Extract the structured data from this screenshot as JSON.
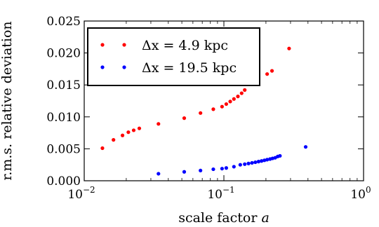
{
  "chart_data": {
    "type": "scatter",
    "xscale": "log",
    "xlim": [
      0.01,
      1
    ],
    "ylim": [
      0,
      0.025
    ],
    "xlabel": "scale factor a",
    "ylabel": "r.m.s. relative deviation",
    "xticks": [
      {
        "value": 0.01,
        "base": "10",
        "exp": "−2"
      },
      {
        "value": 0.1,
        "base": "10",
        "exp": "−1"
      },
      {
        "value": 1,
        "base": "10",
        "exp": "0"
      }
    ],
    "yticks": [
      {
        "value": 0,
        "label": "0.000"
      },
      {
        "value": 0.005,
        "label": "0.005"
      },
      {
        "value": 0.01,
        "label": "0.010"
      },
      {
        "value": 0.015,
        "label": "0.015"
      },
      {
        "value": 0.02,
        "label": "0.020"
      },
      {
        "value": 0.025,
        "label": "0.025"
      }
    ],
    "grid": false,
    "legend_position": "top-left",
    "series": [
      {
        "name": "Δx = 4.9 kpc",
        "color": "#ff0000",
        "x": [
          0.0135,
          0.0162,
          0.0188,
          0.0207,
          0.0226,
          0.0248,
          0.034,
          0.052,
          0.068,
          0.084,
          0.097,
          0.104,
          0.111,
          0.118,
          0.126,
          0.134,
          0.141,
          0.204,
          0.221,
          0.293
        ],
        "y": [
          0.0051,
          0.0064,
          0.0071,
          0.0076,
          0.0079,
          0.0082,
          0.0089,
          0.0098,
          0.0106,
          0.0112,
          0.0116,
          0.012,
          0.0124,
          0.0128,
          0.0132,
          0.0137,
          0.0142,
          0.0167,
          0.0172,
          0.0207
        ]
      },
      {
        "name": "Δx = 19.5 kpc",
        "color": "#0000ff",
        "x": [
          0.034,
          0.052,
          0.068,
          0.084,
          0.097,
          0.104,
          0.118,
          0.131,
          0.141,
          0.15,
          0.159,
          0.168,
          0.177,
          0.186,
          0.195,
          0.204,
          0.214,
          0.223,
          0.233,
          0.243,
          0.252,
          0.385
        ],
        "y": [
          0.0011,
          0.0014,
          0.0016,
          0.0018,
          0.0019,
          0.002,
          0.0022,
          0.0025,
          0.0026,
          0.0027,
          0.0028,
          0.0029,
          0.003,
          0.0031,
          0.0032,
          0.0033,
          0.0034,
          0.0035,
          0.0036,
          0.0038,
          0.0039,
          0.0053
        ]
      }
    ]
  }
}
